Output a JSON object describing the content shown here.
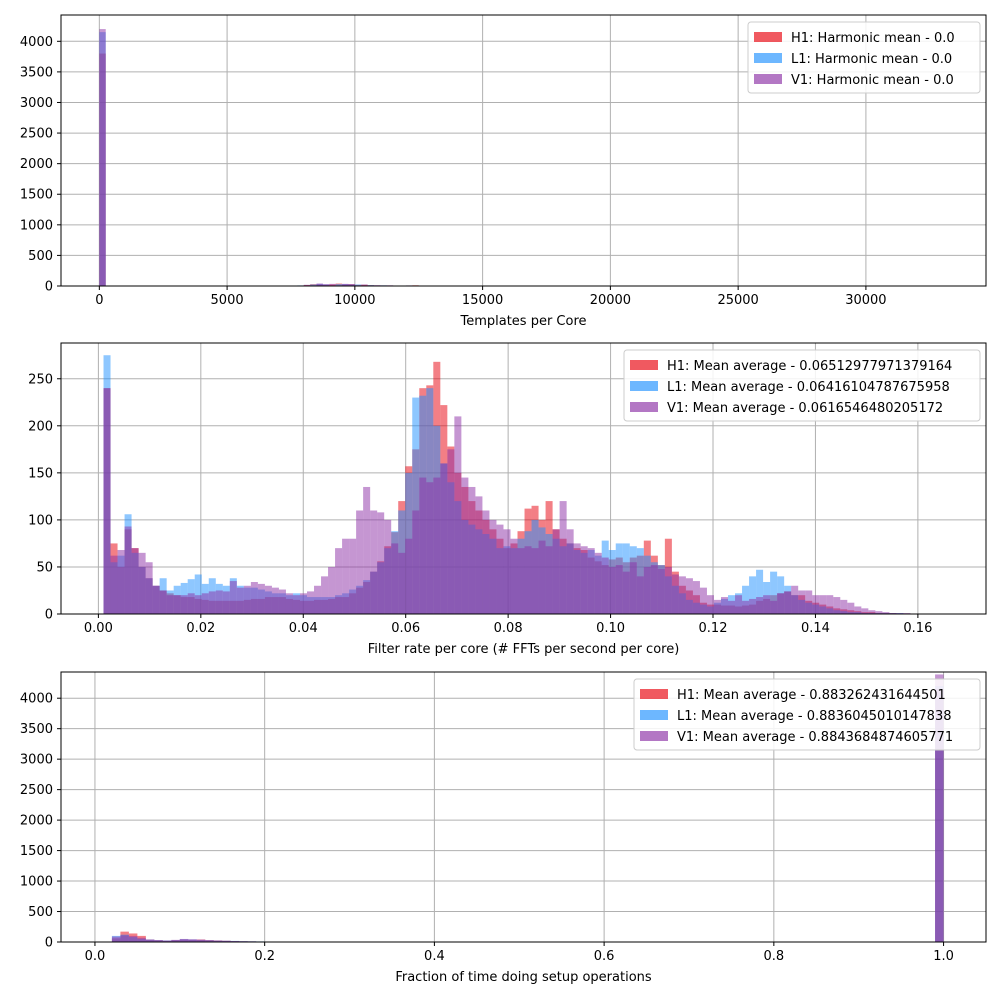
{
  "colors": {
    "H1": "#e8000b",
    "L1": "#1e90ff",
    "V1": "#8b2ea5",
    "grid": "#b0b0b0",
    "frame": "#000000"
  },
  "chart_data": [
    {
      "type": "histogram",
      "xlabel": "Templates per Core",
      "ylabel": "",
      "xlim": [
        -1500,
        34700
      ],
      "ylim": [
        0,
        4430
      ],
      "xticks": [
        0,
        5000,
        10000,
        15000,
        20000,
        25000,
        30000
      ],
      "xtick_labels": [
        "0",
        "5000",
        "10000",
        "15000",
        "20000",
        "25000",
        "30000"
      ],
      "yticks": [
        0,
        500,
        1000,
        1500,
        2000,
        2500,
        3000,
        3500,
        4000
      ],
      "ytick_labels": [
        "0",
        "500",
        "1000",
        "1500",
        "2000",
        "2500",
        "3000",
        "3500",
        "4000"
      ],
      "grid": true,
      "legend_position": "top-right",
      "series": [
        {
          "name": "H1: Harmonic mean  - 0.0",
          "color_key": "H1",
          "bins": [
            [
              0,
              250,
              3800
            ],
            [
              6500,
              6750,
              3
            ],
            [
              7500,
              7750,
              8
            ],
            [
              8000,
              8250,
              15
            ],
            [
              8250,
              8500,
              30
            ],
            [
              8500,
              8750,
              25
            ],
            [
              8750,
              9000,
              20
            ],
            [
              9000,
              9250,
              25
            ],
            [
              9250,
              9500,
              40
            ],
            [
              9500,
              9750,
              25
            ],
            [
              9750,
              10000,
              30
            ],
            [
              10000,
              10250,
              20
            ],
            [
              10250,
              10500,
              20
            ],
            [
              10500,
              10750,
              15
            ],
            [
              11000,
              11250,
              10
            ],
            [
              12250,
              12500,
              12
            ],
            [
              12750,
              13000,
              8
            ],
            [
              14000,
              14250,
              6
            ]
          ]
        },
        {
          "name": "L1: Harmonic mean  - 0.0",
          "color_key": "L1",
          "bins": [
            [
              0,
              250,
              4150
            ],
            [
              7000,
              7250,
              5
            ],
            [
              7750,
              8000,
              10
            ],
            [
              8250,
              8500,
              25
            ],
            [
              8500,
              8750,
              35
            ],
            [
              8750,
              9000,
              25
            ],
            [
              9250,
              9500,
              30
            ],
            [
              9500,
              9750,
              30
            ],
            [
              9750,
              10000,
              25
            ],
            [
              10000,
              10250,
              25
            ],
            [
              10500,
              10750,
              15
            ],
            [
              11000,
              11250,
              12
            ],
            [
              11500,
              11750,
              8
            ],
            [
              12500,
              12750,
              6
            ],
            [
              14500,
              14750,
              5
            ]
          ]
        },
        {
          "name": "V1: Harmonic mean  - 0.0",
          "color_key": "V1",
          "bins": [
            [
              0,
              250,
              4200
            ],
            [
              6250,
              6500,
              5
            ],
            [
              7250,
              7500,
              8
            ],
            [
              8000,
              8250,
              20
            ],
            [
              8500,
              8750,
              40
            ],
            [
              8750,
              9000,
              30
            ],
            [
              9000,
              9250,
              35
            ],
            [
              9500,
              9750,
              35
            ],
            [
              9750,
              10000,
              30
            ],
            [
              10250,
              10500,
              25
            ],
            [
              10750,
              11000,
              15
            ],
            [
              11250,
              11500,
              12
            ],
            [
              12000,
              12250,
              10
            ],
            [
              13250,
              13500,
              8
            ],
            [
              14250,
              14500,
              6
            ]
          ]
        }
      ]
    },
    {
      "type": "histogram",
      "xlabel": "Filter rate per core (# FFTs per second per core)",
      "ylabel": "",
      "xlim": [
        -0.0073,
        0.1733
      ],
      "ylim": [
        0,
        288
      ],
      "xticks": [
        0,
        0.02,
        0.04,
        0.06,
        0.08,
        0.1,
        0.12,
        0.14,
        0.16
      ],
      "xtick_labels": [
        "0.00",
        "0.02",
        "0.04",
        "0.06",
        "0.08",
        "0.10",
        "0.12",
        "0.14",
        "0.16"
      ],
      "yticks": [
        0,
        50,
        100,
        150,
        200,
        250
      ],
      "ytick_labels": [
        "0",
        "50",
        "100",
        "150",
        "200",
        "250"
      ],
      "grid": true,
      "legend_position": "top-right",
      "bin_start": 0.001,
      "bin_width": 0.00137,
      "series": [
        {
          "name": "H1: Mean average - 0.06512977971379164",
          "color_key": "H1",
          "values": [
            240,
            75,
            50,
            90,
            70,
            50,
            38,
            30,
            25,
            22,
            20,
            18,
            18,
            16,
            15,
            14,
            14,
            14,
            14,
            14,
            15,
            16,
            16,
            18,
            18,
            18,
            16,
            15,
            14,
            14,
            15,
            15,
            16,
            18,
            18,
            22,
            28,
            34,
            45,
            56,
            72,
            87,
            120,
            157,
            175,
            240,
            243,
            268,
            222,
            178,
            150,
            135,
            120,
            110,
            100,
            90,
            80,
            70,
            75,
            88,
            112,
            115,
            100,
            120,
            90,
            80,
            75,
            70,
            68,
            60,
            56,
            52,
            58,
            60,
            55,
            60,
            62,
            78,
            62,
            52,
            80,
            45,
            30,
            25,
            20,
            12,
            10,
            10,
            9,
            9,
            8,
            9,
            10,
            14,
            16,
            20,
            22,
            24,
            20,
            20,
            14,
            12,
            10,
            8,
            6,
            5,
            4,
            3,
            2,
            2,
            1,
            1,
            1,
            0,
            0,
            0,
            0,
            0,
            0,
            0
          ]
        },
        {
          "name": "L1: Mean average - 0.06416104787675958",
          "color_key": "L1",
          "values": [
            275,
            55,
            62,
            106,
            65,
            50,
            38,
            30,
            38,
            25,
            30,
            33,
            37,
            42,
            32,
            38,
            32,
            30,
            38,
            30,
            28,
            28,
            26,
            24,
            22,
            22,
            20,
            22,
            20,
            18,
            18,
            18,
            18,
            20,
            22,
            26,
            30,
            36,
            45,
            55,
            70,
            88,
            110,
            150,
            230,
            232,
            240,
            200,
            160,
            140,
            120,
            100,
            95,
            90,
            85,
            80,
            70,
            72,
            70,
            80,
            88,
            100,
            92,
            85,
            80,
            72,
            75,
            68,
            65,
            68,
            62,
            78,
            68,
            75,
            75,
            72,
            70,
            62,
            55,
            52,
            40,
            30,
            22,
            15,
            12,
            10,
            8,
            12,
            16,
            20,
            22,
            30,
            40,
            47,
            34,
            45,
            40,
            30,
            20,
            15,
            12,
            10,
            8,
            6,
            4,
            3,
            2,
            2,
            1,
            1,
            1,
            1,
            1,
            1,
            0,
            0,
            0,
            0,
            0,
            0
          ]
        },
        {
          "name": "V1: Mean average - 0.0616546480205172",
          "color_key": "V1",
          "values": [
            240,
            62,
            68,
            93,
            70,
            65,
            55,
            30,
            25,
            20,
            20,
            20,
            22,
            20,
            22,
            24,
            25,
            24,
            35,
            28,
            30,
            34,
            32,
            30,
            28,
            26,
            22,
            20,
            22,
            24,
            30,
            40,
            50,
            70,
            80,
            80,
            110,
            135,
            110,
            108,
            100,
            75,
            65,
            80,
            110,
            145,
            140,
            145,
            160,
            175,
            210,
            145,
            135,
            125,
            110,
            100,
            95,
            90,
            80,
            70,
            72,
            70,
            78,
            72,
            90,
            120,
            90,
            75,
            72,
            70,
            65,
            60,
            50,
            52,
            45,
            55,
            40,
            50,
            52,
            48,
            50,
            42,
            40,
            38,
            35,
            28,
            20,
            15,
            18,
            14,
            20,
            14,
            16,
            18,
            20,
            14,
            22,
            24,
            30,
            25,
            25,
            20,
            20,
            20,
            18,
            15,
            12,
            8,
            6,
            4,
            3,
            2,
            1,
            1,
            1,
            0,
            0,
            0,
            0,
            0
          ]
        }
      ]
    },
    {
      "type": "histogram",
      "xlabel": "Fraction of time doing setup operations",
      "ylabel": "",
      "xlim": [
        -0.04,
        1.05
      ],
      "ylim": [
        0,
        4430
      ],
      "xticks": [
        0,
        0.2,
        0.4,
        0.6,
        0.8,
        1.0
      ],
      "xtick_labels": [
        "0.0",
        "0.2",
        "0.4",
        "0.6",
        "0.8",
        "1.0"
      ],
      "yticks": [
        0,
        500,
        1000,
        1500,
        2000,
        2500,
        3000,
        3500,
        4000
      ],
      "ytick_labels": [
        "0",
        "500",
        "1000",
        "1500",
        "2000",
        "2500",
        "3000",
        "3500",
        "4000"
      ],
      "grid": true,
      "legend_position": "top-right",
      "bin_start": 0.01,
      "bin_width": 0.01,
      "series": [
        {
          "name": "H1: Mean average - 0.883262431644501",
          "color_key": "H1",
          "values": [
            0,
            60,
            170,
            140,
            100,
            40,
            30,
            20,
            30,
            40,
            35,
            40,
            30,
            25,
            20,
            15,
            12,
            10,
            8,
            8,
            6,
            5,
            4,
            3,
            2,
            2,
            1
          ],
          "tail": [
            [
              0.99,
              1.0,
              4150
            ]
          ]
        },
        {
          "name": "L1: Mean average - 0.8836045010147838",
          "color_key": "L1",
          "values": [
            0,
            100,
            120,
            80,
            50,
            40,
            30,
            25,
            30,
            45,
            40,
            30,
            28,
            22,
            20,
            18,
            14,
            12,
            10,
            8,
            6,
            5,
            4,
            3,
            2,
            2,
            1
          ],
          "tail": [
            [
              0.99,
              1.0,
              4200
            ]
          ]
        },
        {
          "name": "V1: Mean average - 0.8843684874605771",
          "color_key": "V1",
          "values": [
            0,
            90,
            110,
            100,
            70,
            40,
            30,
            25,
            35,
            50,
            45,
            40,
            30,
            25,
            20,
            15,
            12,
            10,
            8,
            6,
            5,
            4,
            3,
            2,
            2,
            1,
            0
          ],
          "tail": [
            [
              0.99,
              1.0,
              4390
            ]
          ]
        }
      ]
    }
  ]
}
